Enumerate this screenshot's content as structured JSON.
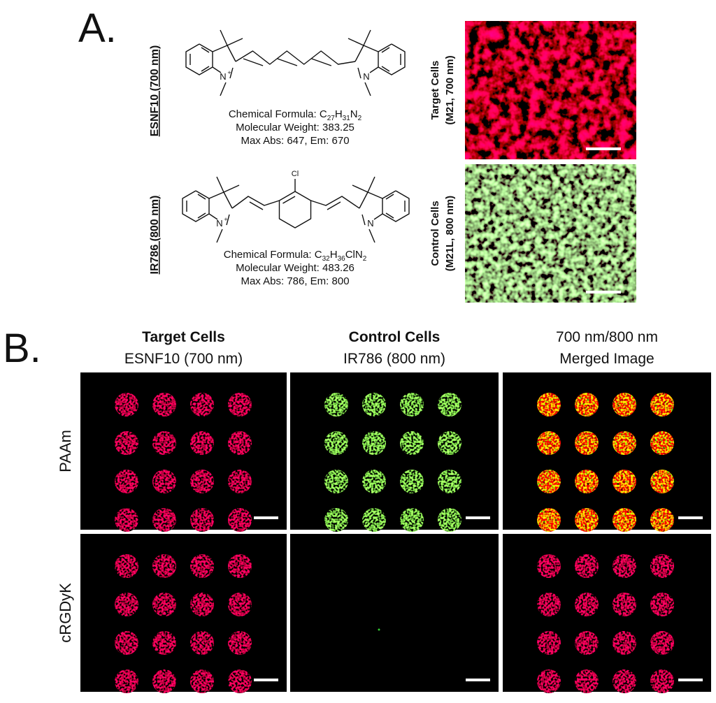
{
  "panel_a": {
    "label": "A.",
    "compounds": [
      {
        "name": "ESNF10 (700 nm)",
        "atoms": [
          "N",
          "+",
          "N"
        ],
        "formula": [
          "Chemical Formula: C",
          "27",
          "H",
          "31",
          "N",
          "2"
        ],
        "weight": "Molecular Weight: 383.25",
        "spectra": "Max Abs: 647, Em: 670"
      },
      {
        "name": "IR786 (800 nm)",
        "atoms": [
          "Cl",
          "N",
          "+",
          "N"
        ],
        "formula": [
          "Chemical Formula: C",
          "32",
          "H",
          "36",
          "ClN",
          "2"
        ],
        "weight": "Molecular Weight: 483.26",
        "spectra": "Max Abs: 786, Em: 800"
      }
    ],
    "images": [
      {
        "title": "Target Cells",
        "subtitle": "(M21, 700 nm)"
      },
      {
        "title": "Control Cells",
        "subtitle": "(M21L, 800 nm)"
      }
    ]
  },
  "panel_b": {
    "label": "B.",
    "columns": [
      {
        "title": "Target Cells",
        "subtitle": "ESNF10 (700 nm)"
      },
      {
        "title": "Control Cells",
        "subtitle": "IR786 (800 nm)"
      },
      {
        "title": "700 nm/800 nm",
        "subtitle": "Merged Image"
      }
    ],
    "rows": [
      "PAAm",
      "cRGDyK"
    ]
  }
}
